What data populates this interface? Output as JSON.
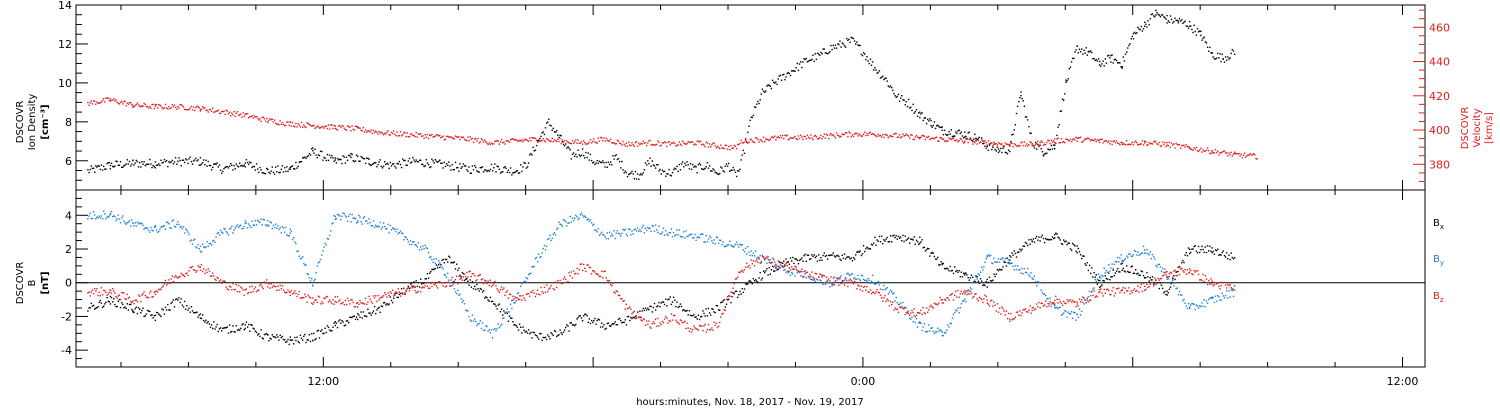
{
  "chart_data": [
    {
      "type": "scatter",
      "panel": "top",
      "left_axis": {
        "label_lines": [
          "DSCOVR",
          "Ion Density",
          "[cm⁻³]"
        ],
        "ylim": [
          4.5,
          14
        ],
        "ticks": [
          6,
          8,
          10,
          12,
          14
        ],
        "color": "#000000"
      },
      "right_axis": {
        "label_lines": [
          "DSCOVR",
          "Velocity",
          "[km/s]"
        ],
        "ylim": [
          365,
          473
        ],
        "ticks": [
          380,
          400,
          420,
          440,
          460
        ],
        "color": "#e0201c"
      },
      "series": [
        {
          "id": "density",
          "axis": "left",
          "color": "#000000",
          "x": [
            -4.5,
            -3.5,
            -2.5,
            -1.5,
            -0.5,
            0.5,
            1.5,
            2.5,
            3.5,
            4.5,
            5.5,
            6.5,
            7.2,
            8,
            9,
            10,
            10.8,
            11.5,
            12.5,
            13.5,
            14.5,
            15,
            15.5,
            16,
            16.5,
            17,
            17.5,
            18,
            18.5,
            19,
            19.5,
            20,
            20.5,
            21,
            21.5,
            22,
            22.5,
            23,
            23.5,
            24,
            24.3,
            24.5,
            25,
            25.5,
            26,
            26.5,
            27,
            27.5,
            28,
            28.5,
            29,
            29.5,
            30,
            30.5,
            31,
            31.5,
            32,
            32.5,
            33,
            33.5,
            34,
            34.5,
            35,
            35.5,
            36,
            36.5,
            37,
            37.5,
            38,
            38.5,
            39,
            39.5,
            40,
            40.5,
            41,
            41.5,
            42,
            42.5,
            43,
            43.5,
            44,
            44.5,
            45,
            45.5,
            46,
            46.5
          ],
          "y": [
            5.5,
            5.8,
            5.9,
            5.9,
            6.0,
            6.0,
            5.6,
            5.9,
            5.5,
            5.6,
            6.5,
            6.0,
            6.2,
            6.0,
            5.8,
            6.0,
            5.9,
            5.8,
            5.6,
            5.7,
            5.5,
            5.8,
            7.0,
            8.0,
            7.2,
            6.3,
            6.5,
            6.0,
            5.8,
            6.2,
            5.4,
            5.3,
            6.0,
            5.5,
            5.4,
            5.9,
            5.6,
            5.8,
            5.4,
            5.8,
            5.3,
            5.6,
            8.2,
            9.5,
            10.0,
            10.4,
            10.8,
            11.2,
            11.4,
            11.8,
            12.0,
            12.2,
            11.6,
            10.8,
            10.2,
            9.3,
            9.0,
            8.4,
            8.0,
            7.6,
            7.5,
            7.4,
            7.2,
            6.8,
            6.6,
            6.6,
            9.5,
            7.0,
            6.5,
            6.8,
            10.0,
            11.8,
            11.6,
            11.0,
            11.3,
            11.0,
            12.5,
            13.0,
            13.6,
            13.3,
            13.2,
            13.0,
            12.5,
            11.5,
            11.3,
            11.6
          ]
        },
        {
          "id": "velocity",
          "axis": "right",
          "color": "#e0201c",
          "x": [
            -4.5,
            -3.5,
            -2.5,
            -1.5,
            -0.5,
            0.5,
            1.5,
            2.5,
            3.5,
            4.5,
            5.5,
            6.5,
            7.5,
            8.5,
            9.5,
            10.5,
            11.5,
            12.5,
            13.5,
            14.5,
            15.5,
            16.5,
            17.5,
            18.5,
            19.5,
            20.5,
            21.5,
            22.5,
            23.5,
            24.3,
            24.6,
            25.5,
            26.5,
            27.5,
            28.5,
            29.5,
            30.5,
            31.5,
            32.5,
            33.5,
            34.5,
            35.5,
            36.5,
            37.5,
            38.5,
            39.5,
            40.5,
            41.5,
            42.5,
            43.5,
            44.5,
            45.5,
            46.5,
            47.5
          ],
          "y": [
            416,
            418,
            415,
            414,
            414,
            413,
            411,
            409,
            406,
            404,
            403,
            402,
            401,
            399,
            398,
            397,
            396,
            395,
            393,
            394,
            395,
            394,
            393,
            395,
            392,
            393,
            392,
            393,
            391,
            390,
            394,
            395,
            396,
            396,
            397,
            398,
            398,
            397,
            396,
            395,
            394,
            393,
            392,
            392,
            394,
            395,
            394,
            393,
            393,
            392,
            390,
            388,
            386,
            385
          ]
        }
      ],
      "x_range_hours": [
        -5,
        55
      ]
    },
    {
      "type": "scatter",
      "panel": "bottom",
      "left_axis": {
        "label_lines": [
          "DSCOVR",
          "B",
          "[nT]"
        ],
        "ylim": [
          -5,
          5.5
        ],
        "ticks": [
          -4,
          -2,
          0,
          2,
          4
        ],
        "color": "#000000"
      },
      "zero_line": true,
      "series": [
        {
          "id": "bx",
          "name": "Bx",
          "label_main": "B",
          "label_sub": "x",
          "color": "#000000",
          "x": [
            -4.5,
            -3.5,
            -2.5,
            -1.5,
            -0.5,
            0.5,
            1.5,
            2.5,
            3.5,
            4.5,
            5.5,
            6.5,
            7.5,
            8.5,
            9.5,
            10.5,
            11.5,
            12.5,
            13.5,
            14.5,
            15.5,
            16.5,
            17.5,
            18.5,
            19.5,
            20.5,
            21.5,
            22.5,
            23.5,
            24.5,
            25.5,
            26.5,
            27.5,
            28.5,
            29.5,
            30.5,
            31.5,
            32.5,
            33.5,
            34.5,
            35.5,
            36.5,
            37.5,
            38.5,
            39.5,
            40.5,
            41.5,
            42.5,
            43.5,
            44.5,
            45.5,
            46.5
          ],
          "y": [
            -1.5,
            -1.0,
            -1.5,
            -2.0,
            -1.0,
            -2.0,
            -2.8,
            -2.5,
            -3.2,
            -3.4,
            -3.2,
            -2.5,
            -2.0,
            -1.5,
            -0.5,
            0.2,
            1.5,
            0.0,
            -1.0,
            -2.5,
            -3.2,
            -3.0,
            -2.0,
            -2.5,
            -2.2,
            -1.5,
            -1.0,
            -2.0,
            -1.5,
            -0.5,
            0.5,
            1.2,
            1.5,
            1.6,
            1.5,
            2.5,
            2.8,
            2.5,
            1.0,
            0.5,
            0.0,
            1.5,
            2.5,
            2.8,
            2.0,
            0.0,
            1.0,
            0.5,
            -0.5,
            2.0,
            2.0,
            1.5
          ]
        },
        {
          "id": "by",
          "name": "By",
          "label_main": "B",
          "label_sub": "y",
          "color": "#1f7fd6",
          "x": [
            -4.5,
            -3.5,
            -2.5,
            -1.5,
            -0.5,
            0.5,
            1.5,
            2.5,
            3.5,
            4.5,
            5.5,
            6.5,
            7.5,
            8.5,
            9.5,
            10.5,
            11.5,
            12.5,
            13.5,
            14.5,
            15.5,
            16.5,
            17.5,
            18.5,
            19.5,
            20.5,
            21.5,
            22.5,
            23.5,
            24.5,
            25.5,
            26.5,
            27.5,
            28.5,
            29.5,
            30.5,
            31.5,
            32.5,
            33.5,
            34.5,
            35.5,
            36.5,
            37.5,
            38.5,
            39.5,
            40.5,
            41.5,
            42.5,
            43.5,
            44.5,
            45.5,
            46.5
          ],
          "y": [
            4.0,
            4.1,
            3.5,
            3.2,
            3.6,
            2.0,
            3.0,
            3.5,
            3.6,
            3.0,
            0.0,
            4.0,
            3.8,
            3.5,
            2.8,
            2.0,
            0.5,
            -2.0,
            -3.0,
            -1.0,
            1.5,
            3.5,
            4.0,
            2.8,
            3.0,
            3.3,
            3.0,
            2.8,
            2.5,
            2.2,
            1.5,
            0.8,
            0.5,
            0.0,
            0.5,
            0.2,
            -1.0,
            -2.5,
            -3.0,
            -1.0,
            1.5,
            1.2,
            0.5,
            -1.5,
            -2.0,
            0.5,
            1.5,
            2.0,
            0.5,
            -1.5,
            -1.0,
            -0.5
          ]
        },
        {
          "id": "bz",
          "name": "Bz",
          "label_main": "B",
          "label_sub": "z",
          "color": "#e0201c",
          "x": [
            -4.5,
            -3.5,
            -2.5,
            -1.5,
            -0.5,
            0.5,
            1.5,
            2.5,
            3.5,
            4.5,
            5.5,
            6.5,
            7.5,
            8.5,
            9.5,
            10.5,
            11.5,
            12.5,
            13.5,
            14.5,
            15.5,
            16.5,
            17.5,
            18.5,
            19.5,
            20.5,
            21.5,
            22.5,
            23.5,
            24.5,
            25.5,
            26.5,
            27.5,
            28.5,
            29.5,
            30.5,
            31.5,
            32.5,
            33.5,
            34.5,
            35.5,
            36.5,
            37.5,
            38.5,
            39.5,
            40.5,
            41.5,
            42.5,
            43.5,
            44.5,
            45.5,
            46.5
          ],
          "y": [
            -0.5,
            -0.5,
            -1.0,
            -0.5,
            0.5,
            1.0,
            0.0,
            -0.5,
            0.0,
            -0.5,
            -1.0,
            -1.0,
            -1.2,
            -0.8,
            -0.5,
            -0.2,
            0.0,
            0.5,
            0.0,
            -1.0,
            -0.5,
            0.0,
            1.0,
            0.5,
            -1.5,
            -2.5,
            -2.0,
            -2.8,
            -2.5,
            0.8,
            1.5,
            1.0,
            0.5,
            0.2,
            0.0,
            -0.5,
            -1.5,
            -1.8,
            -1.0,
            -0.5,
            -1.0,
            -2.0,
            -1.5,
            -1.0,
            -1.2,
            -0.5,
            -0.5,
            -0.2,
            0.5,
            0.8,
            0.0,
            -0.3
          ]
        }
      ],
      "x_range_hours": [
        -5,
        55
      ]
    }
  ],
  "x_axis": {
    "tick_labels": [
      {
        "hours": 6,
        "label": "12:00"
      },
      {
        "hours": 30,
        "label": "0:00"
      },
      {
        "hours": 54,
        "label": "12:00"
      }
    ],
    "xlabel": "hours:minutes, Nov. 18, 2017 - Nov. 19, 2017"
  }
}
